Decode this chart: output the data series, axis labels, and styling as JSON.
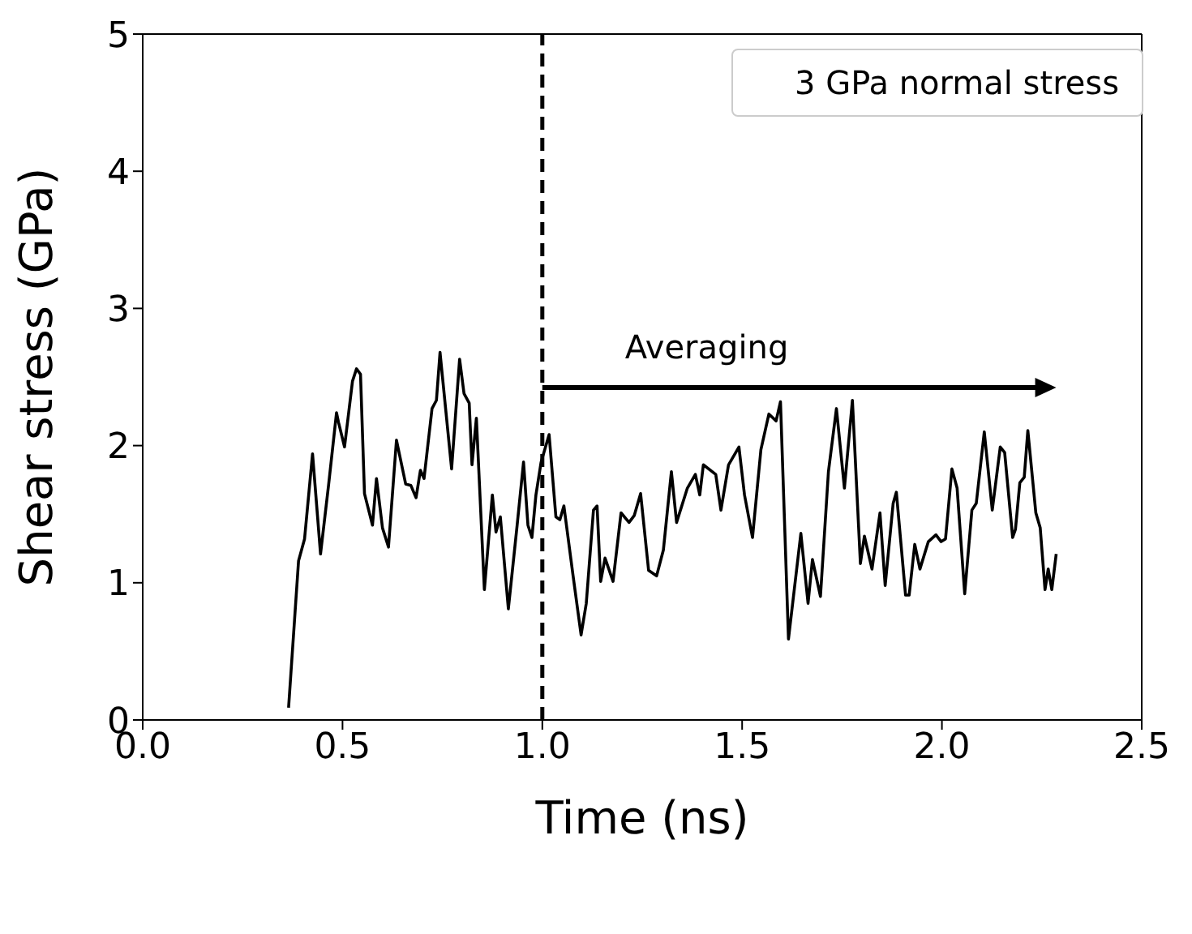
{
  "chart_data": {
    "type": "line",
    "xlabel": "Time (ns)",
    "ylabel": "Shear stress (GPa)",
    "xlim": [
      0,
      2.5
    ],
    "xticks": [
      {
        "value": 0,
        "label": "0.0"
      },
      0.5,
      {
        "value": 1,
        "label": "1.0"
      },
      1.5,
      {
        "value": 2,
        "label": "2.0"
      },
      2.5
    ],
    "ylim": [
      0,
      5
    ],
    "yticks": [
      0,
      1,
      2,
      3,
      4,
      5
    ],
    "grid": false,
    "legend": "top right",
    "marker": "none",
    "line_style": "solid",
    "x": [
      0.365,
      0.39,
      0.405,
      0.425,
      0.445,
      0.465,
      0.485,
      0.49,
      0.505,
      0.525,
      0.535,
      0.545,
      0.555,
      0.575,
      0.585,
      0.6,
      0.615,
      0.635,
      0.658,
      0.671,
      0.684,
      0.695,
      0.704,
      0.724,
      0.735,
      0.744,
      0.773,
      0.793,
      0.804,
      0.817,
      0.824,
      0.835,
      0.855,
      0.875,
      0.884,
      0.895,
      0.915,
      0.937,
      0.953,
      0.964,
      0.974,
      0.984,
      0.997,
      1.017,
      1.034,
      1.044,
      1.054,
      1.077,
      1.097,
      1.11,
      1.128,
      1.137,
      1.146,
      1.157,
      1.177,
      1.197,
      1.217,
      1.23,
      1.246,
      1.266,
      1.286,
      1.303,
      1.323,
      1.336,
      1.363,
      1.383,
      1.394,
      1.403,
      1.434,
      1.447,
      1.466,
      1.492,
      1.506,
      1.526,
      1.547,
      1.567,
      1.585,
      1.596,
      1.616,
      1.647,
      1.665,
      1.676,
      1.696,
      1.716,
      1.736,
      1.756,
      1.776,
      1.796,
      1.806,
      1.825,
      1.845,
      1.858,
      1.878,
      1.886,
      1.909,
      1.918,
      1.932,
      1.945,
      1.966,
      1.985,
      1.998,
      2.009,
      2.025,
      2.038,
      2.057,
      2.075,
      2.086,
      2.106,
      2.126,
      2.146,
      2.157,
      2.177,
      2.184,
      2.195,
      2.206,
      2.215,
      2.235,
      2.246,
      2.258,
      2.266,
      2.275,
      2.286
    ],
    "series": [
      {
        "name": "3 GPa normal stress",
        "color": "#000000",
        "values": [
          0.09,
          1.16,
          1.32,
          1.94,
          1.21,
          1.71,
          2.24,
          2.17,
          1.99,
          2.47,
          2.56,
          2.52,
          1.65,
          1.42,
          1.76,
          1.4,
          1.26,
          2.04,
          1.72,
          1.71,
          1.62,
          1.82,
          1.76,
          2.27,
          2.33,
          2.68,
          1.83,
          2.63,
          2.38,
          2.31,
          1.86,
          2.2,
          0.95,
          1.64,
          1.37,
          1.48,
          0.81,
          1.42,
          1.88,
          1.42,
          1.33,
          1.64,
          1.88,
          2.08,
          1.48,
          1.46,
          1.56,
          1.05,
          0.62,
          0.85,
          1.53,
          1.56,
          1.01,
          1.18,
          1.01,
          1.51,
          1.44,
          1.49,
          1.65,
          1.09,
          1.05,
          1.24,
          1.81,
          1.44,
          1.69,
          1.79,
          1.64,
          1.86,
          1.79,
          1.53,
          1.86,
          1.99,
          1.64,
          1.33,
          1.97,
          2.23,
          2.18,
          2.32,
          0.59,
          1.36,
          0.85,
          1.17,
          0.9,
          1.81,
          2.27,
          1.69,
          2.33,
          1.14,
          1.34,
          1.1,
          1.51,
          0.98,
          1.58,
          1.66,
          0.91,
          0.91,
          1.28,
          1.1,
          1.3,
          1.35,
          1.3,
          1.32,
          1.83,
          1.69,
          0.92,
          1.53,
          1.58,
          2.1,
          1.53,
          1.99,
          1.95,
          1.33,
          1.39,
          1.73,
          1.77,
          2.11,
          1.51,
          1.4,
          0.95,
          1.1,
          0.95,
          1.21
        ]
      }
    ],
    "ref_lines": [
      {
        "axis": "x",
        "value": 1,
        "color": "#000000",
        "line_style": "dashed"
      }
    ],
    "annotations": [
      "Averaging"
    ]
  }
}
